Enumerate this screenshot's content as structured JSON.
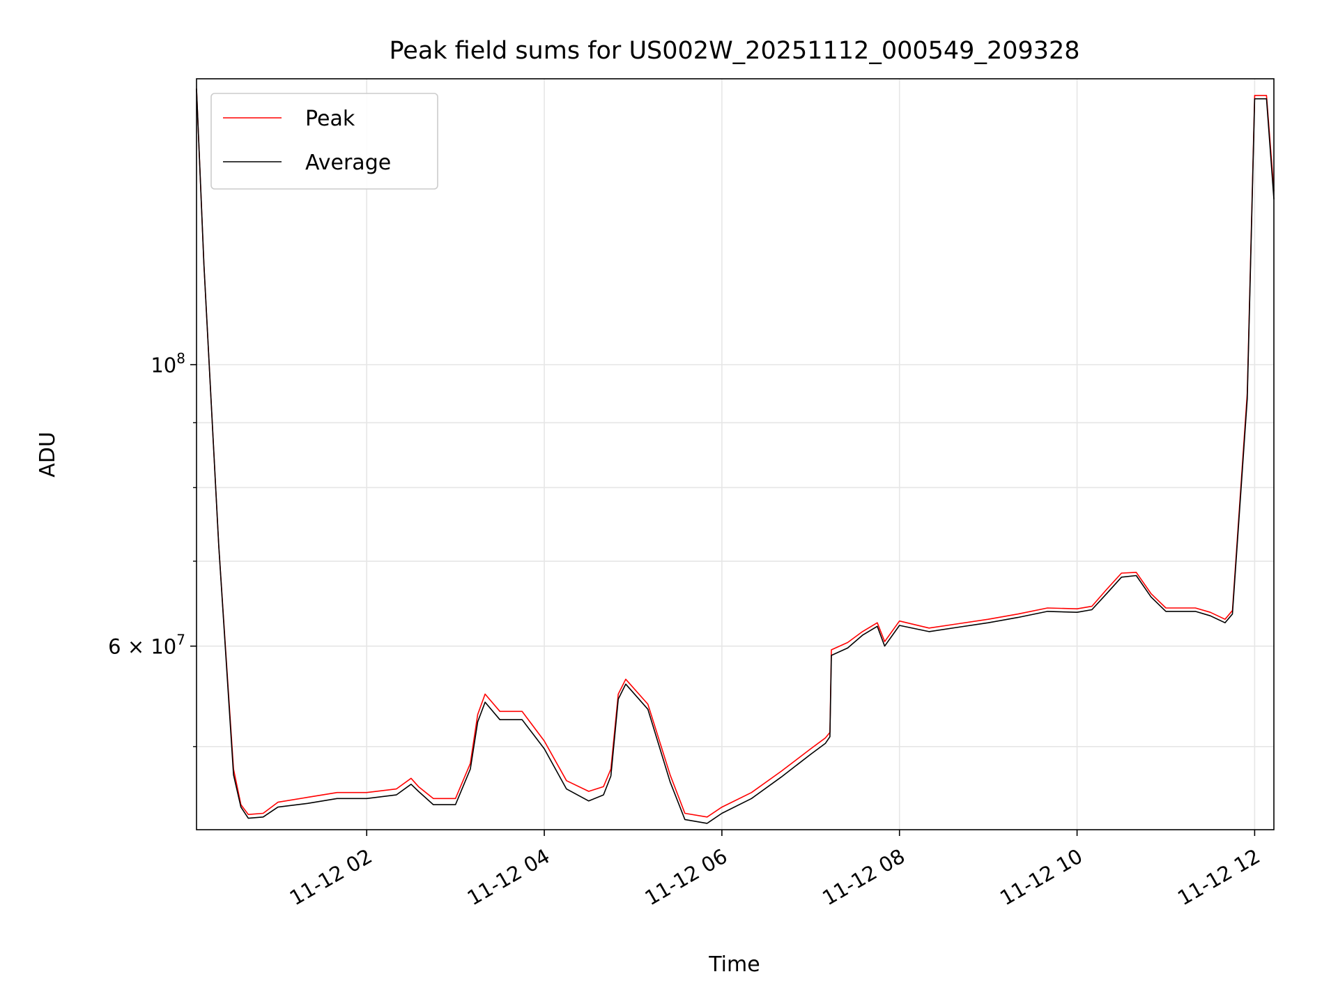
{
  "chart_data": {
    "type": "line",
    "title": "Peak field sums for US002W_20251112_000549_209328",
    "xlabel": "Time",
    "ylabel": "ADU",
    "yscale": "log",
    "grid": true,
    "legend_position": "top-left",
    "x_range": [
      "2025-11-12 00:05",
      "2025-11-12 12:13"
    ],
    "y_range": [
      43000000.0,
      168000000.0
    ],
    "x_ticks": [
      {
        "value": "2025-11-12 02:00",
        "label": "11-12 02"
      },
      {
        "value": "2025-11-12 04:00",
        "label": "11-12 04"
      },
      {
        "value": "2025-11-12 06:00",
        "label": "11-12 06"
      },
      {
        "value": "2025-11-12 08:00",
        "label": "11-12 08"
      },
      {
        "value": "2025-11-12 10:00",
        "label": "11-12 10"
      },
      {
        "value": "2025-11-12 12:00",
        "label": "11-12 12"
      }
    ],
    "y_major_ticks": [
      {
        "value": 60000000,
        "label_base": "6 × 10",
        "label_exp": "7"
      },
      {
        "value": 100000000,
        "label_base": "10",
        "label_exp": "8"
      }
    ],
    "y_minor_ticks": [
      50000000,
      70000000,
      80000000,
      90000000
    ],
    "series": [
      {
        "name": "Peak",
        "color": "#ff0000",
        "x": [
          "2025-11-12 00:05",
          "2025-11-12 00:10",
          "2025-11-12 00:20",
          "2025-11-12 00:30",
          "2025-11-12 00:35",
          "2025-11-12 00:40",
          "2025-11-12 00:50",
          "2025-11-12 01:00",
          "2025-11-12 01:20",
          "2025-11-12 01:40",
          "2025-11-12 02:00",
          "2025-11-12 02:20",
          "2025-11-12 02:30",
          "2025-11-12 02:35",
          "2025-11-12 02:45",
          "2025-11-12 03:00",
          "2025-11-12 03:10",
          "2025-11-12 03:15",
          "2025-11-12 03:20",
          "2025-11-12 03:30",
          "2025-11-12 03:45",
          "2025-11-12 04:00",
          "2025-11-12 04:15",
          "2025-11-12 04:30",
          "2025-11-12 04:40",
          "2025-11-12 04:45",
          "2025-11-12 04:50",
          "2025-11-12 04:55",
          "2025-11-12 05:10",
          "2025-11-12 05:25",
          "2025-11-12 05:35",
          "2025-11-12 05:50",
          "2025-11-12 06:00",
          "2025-11-12 06:20",
          "2025-11-12 06:40",
          "2025-11-12 07:00",
          "2025-11-12 07:10",
          "2025-11-12 07:13",
          "2025-11-12 07:14",
          "2025-11-12 07:25",
          "2025-11-12 07:35",
          "2025-11-12 07:45",
          "2025-11-12 07:50",
          "2025-11-12 08:00",
          "2025-11-12 08:20",
          "2025-11-12 08:40",
          "2025-11-12 09:00",
          "2025-11-12 09:20",
          "2025-11-12 09:40",
          "2025-11-12 10:00",
          "2025-11-12 10:10",
          "2025-11-12 10:20",
          "2025-11-12 10:30",
          "2025-11-12 10:40",
          "2025-11-12 10:50",
          "2025-11-12 11:00",
          "2025-11-12 11:10",
          "2025-11-12 11:20",
          "2025-11-12 11:30",
          "2025-11-12 11:40",
          "2025-11-12 11:45",
          "2025-11-12 11:55",
          "2025-11-12 12:00",
          "2025-11-12 12:05",
          "2025-11-12 12:08",
          "2025-11-12 12:13"
        ],
        "values": [
          165000000,
          120000000,
          72000000,
          48000000,
          45000000,
          44200000,
          44300000,
          45200000,
          45600000,
          46000000,
          46000000,
          46300000,
          47200000,
          46500000,
          45500000,
          45500000,
          48500000,
          53000000,
          55000000,
          53300000,
          53300000,
          50500000,
          47000000,
          46100000,
          46500000,
          48000000,
          55000000,
          56500000,
          54000000,
          47500000,
          44300000,
          44000000,
          44800000,
          46000000,
          47800000,
          49800000,
          50800000,
          51300000,
          59600000,
          60400000,
          61600000,
          62600000,
          60500000,
          62800000,
          62000000,
          62500000,
          63000000,
          63600000,
          64300000,
          64200000,
          64500000,
          66500000,
          68500000,
          68600000,
          66000000,
          64300000,
          64300000,
          64300000,
          63800000,
          63000000,
          64000000,
          95000000,
          163000000,
          163000000,
          163000000,
          137000000
        ]
      },
      {
        "name": "Average",
        "color": "#000000",
        "x": [
          "2025-11-12 00:05",
          "2025-11-12 00:10",
          "2025-11-12 00:20",
          "2025-11-12 00:30",
          "2025-11-12 00:35",
          "2025-11-12 00:40",
          "2025-11-12 00:50",
          "2025-11-12 01:00",
          "2025-11-12 01:20",
          "2025-11-12 01:40",
          "2025-11-12 02:00",
          "2025-11-12 02:20",
          "2025-11-12 02:30",
          "2025-11-12 02:35",
          "2025-11-12 02:45",
          "2025-11-12 03:00",
          "2025-11-12 03:10",
          "2025-11-12 03:15",
          "2025-11-12 03:20",
          "2025-11-12 03:30",
          "2025-11-12 03:45",
          "2025-11-12 04:00",
          "2025-11-12 04:15",
          "2025-11-12 04:30",
          "2025-11-12 04:40",
          "2025-11-12 04:45",
          "2025-11-12 04:50",
          "2025-11-12 04:55",
          "2025-11-12 05:10",
          "2025-11-12 05:25",
          "2025-11-12 05:35",
          "2025-11-12 05:50",
          "2025-11-12 06:00",
          "2025-11-12 06:20",
          "2025-11-12 06:40",
          "2025-11-12 07:00",
          "2025-11-12 07:10",
          "2025-11-12 07:13",
          "2025-11-12 07:14",
          "2025-11-12 07:25",
          "2025-11-12 07:35",
          "2025-11-12 07:45",
          "2025-11-12 07:50",
          "2025-11-12 08:00",
          "2025-11-12 08:20",
          "2025-11-12 08:40",
          "2025-11-12 09:00",
          "2025-11-12 09:20",
          "2025-11-12 09:40",
          "2025-11-12 10:00",
          "2025-11-12 10:10",
          "2025-11-12 10:20",
          "2025-11-12 10:30",
          "2025-11-12 10:40",
          "2025-11-12 10:50",
          "2025-11-12 11:00",
          "2025-11-12 11:10",
          "2025-11-12 11:20",
          "2025-11-12 11:30",
          "2025-11-12 11:40",
          "2025-11-12 11:45",
          "2025-11-12 11:55",
          "2025-11-12 12:00",
          "2025-11-12 12:05",
          "2025-11-12 12:08",
          "2025-11-12 12:13"
        ],
        "values": [
          165000000,
          120000000,
          72000000,
          47500000,
          44800000,
          43900000,
          44000000,
          44800000,
          45100000,
          45500000,
          45500000,
          45800000,
          46700000,
          46100000,
          45000000,
          45000000,
          48000000,
          52300000,
          54200000,
          52500000,
          52500000,
          49800000,
          46300000,
          45300000,
          45800000,
          47400000,
          54500000,
          56000000,
          53500000,
          46900000,
          43800000,
          43500000,
          44300000,
          45500000,
          47300000,
          49300000,
          50300000,
          50900000,
          59000000,
          59800000,
          61200000,
          62200000,
          60000000,
          62300000,
          61600000,
          62100000,
          62600000,
          63200000,
          63900000,
          63800000,
          64100000,
          66000000,
          68000000,
          68200000,
          65600000,
          63900000,
          63900000,
          63900000,
          63400000,
          62600000,
          63600000,
          94000000,
          162000000,
          162000000,
          162000000,
          135000000
        ]
      }
    ]
  }
}
